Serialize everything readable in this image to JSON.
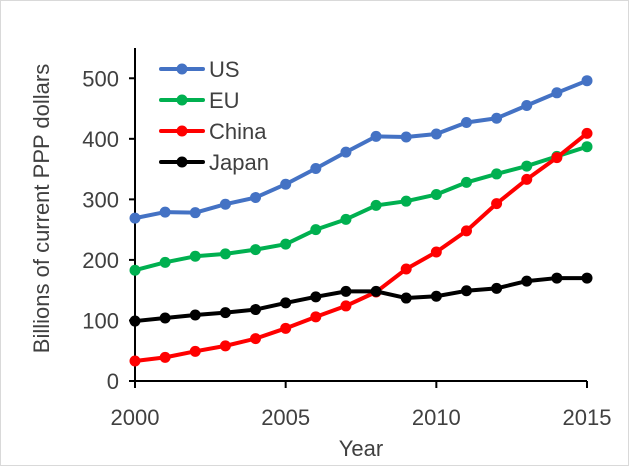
{
  "chart_data": {
    "type": "line",
    "title": "",
    "xlabel": "Year",
    "ylabel": "Billions of current PPP dollars",
    "xlim": [
      2000,
      2015
    ],
    "ylim": [
      0,
      550
    ],
    "xticks": [
      "2000",
      "2005",
      "2010",
      "2015"
    ],
    "yticks": [
      "0",
      "100",
      "200",
      "300",
      "400",
      "500"
    ],
    "grid": false,
    "legend_position": "top-left",
    "x": [
      2000,
      2001,
      2002,
      2003,
      2004,
      2005,
      2006,
      2007,
      2008,
      2009,
      2010,
      2011,
      2012,
      2013,
      2014,
      2015
    ],
    "series": [
      {
        "name": "US",
        "color": "#4472c4",
        "values": [
          269,
          279,
          278,
          292,
          303,
          325,
          351,
          378,
          404,
          403,
          408,
          427,
          434,
          455,
          476,
          496
        ]
      },
      {
        "name": "EU",
        "color": "#00b050",
        "values": [
          183,
          196,
          206,
          210,
          217,
          226,
          250,
          267,
          290,
          297,
          308,
          328,
          342,
          355,
          371,
          387
        ]
      },
      {
        "name": "China",
        "color": "#ff0000",
        "values": [
          33,
          39,
          49,
          58,
          70,
          87,
          106,
          124,
          147,
          185,
          213,
          248,
          293,
          333,
          369,
          409
        ]
      },
      {
        "name": "Japan",
        "color": "#000000",
        "values": [
          99,
          104,
          109,
          113,
          118,
          129,
          139,
          148,
          148,
          137,
          140,
          149,
          153,
          165,
          170,
          170
        ]
      }
    ]
  }
}
